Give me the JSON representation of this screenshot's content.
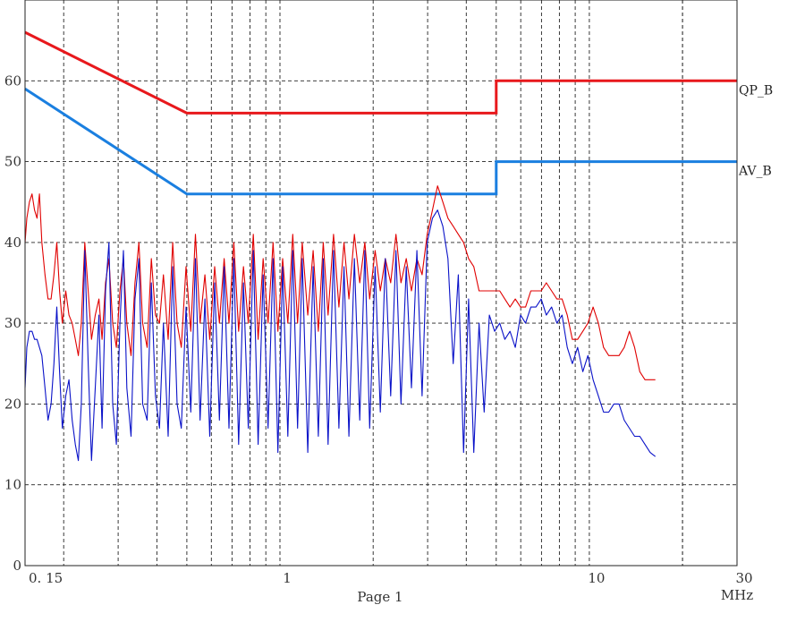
{
  "page_label": "Page 1",
  "chart_data": {
    "type": "line",
    "x_scale": "log",
    "xlim": [
      0.15,
      30
    ],
    "ylim": [
      0,
      70
    ],
    "grid": true,
    "x_ticks": [
      {
        "value": 0.15,
        "label": "0. 15"
      },
      {
        "value": 1,
        "label": "1"
      },
      {
        "value": 10,
        "label": "10"
      },
      {
        "value": 30,
        "label": "30"
      }
    ],
    "x_unit": "MHz",
    "y_ticks": [
      0,
      10,
      20,
      30,
      40,
      50,
      60
    ],
    "limit_lines": [
      {
        "name": "QP_B",
        "color": "#e8181c",
        "points": [
          [
            0.15,
            66
          ],
          [
            0.5,
            56
          ],
          [
            5,
            56
          ],
          [
            5,
            60
          ],
          [
            30,
            60
          ]
        ]
      },
      {
        "name": "AV_B",
        "color": "#1a7fe0",
        "points": [
          [
            0.15,
            59
          ],
          [
            0.5,
            46
          ],
          [
            5,
            46
          ],
          [
            5,
            50
          ],
          [
            30,
            50
          ]
        ]
      }
    ],
    "series": [
      {
        "color": "#e00000",
        "points": [
          [
            0.15,
            40
          ],
          [
            0.152,
            43
          ],
          [
            0.155,
            45
          ],
          [
            0.158,
            46
          ],
          [
            0.161,
            44
          ],
          [
            0.164,
            43
          ],
          [
            0.167,
            46
          ],
          [
            0.17,
            40
          ],
          [
            0.174,
            36
          ],
          [
            0.178,
            33
          ],
          [
            0.182,
            33
          ],
          [
            0.186,
            36
          ],
          [
            0.19,
            40
          ],
          [
            0.194,
            34
          ],
          [
            0.198,
            30
          ],
          [
            0.203,
            34
          ],
          [
            0.208,
            31
          ],
          [
            0.213,
            30
          ],
          [
            0.218,
            28
          ],
          [
            0.223,
            26
          ],
          [
            0.228,
            30
          ],
          [
            0.234,
            40
          ],
          [
            0.24,
            34
          ],
          [
            0.246,
            28
          ],
          [
            0.253,
            31
          ],
          [
            0.26,
            33
          ],
          [
            0.266,
            28
          ],
          [
            0.273,
            35
          ],
          [
            0.28,
            38
          ],
          [
            0.288,
            30
          ],
          [
            0.296,
            27
          ],
          [
            0.304,
            34
          ],
          [
            0.312,
            38
          ],
          [
            0.32,
            30
          ],
          [
            0.33,
            26
          ],
          [
            0.34,
            35
          ],
          [
            0.35,
            40
          ],
          [
            0.36,
            30
          ],
          [
            0.372,
            27
          ],
          [
            0.384,
            38
          ],
          [
            0.396,
            31
          ],
          [
            0.408,
            30
          ],
          [
            0.42,
            36
          ],
          [
            0.435,
            28
          ],
          [
            0.45,
            40
          ],
          [
            0.465,
            30
          ],
          [
            0.48,
            27
          ],
          [
            0.497,
            37
          ],
          [
            0.515,
            29
          ],
          [
            0.533,
            41
          ],
          [
            0.552,
            30
          ],
          [
            0.572,
            36
          ],
          [
            0.593,
            28
          ],
          [
            0.615,
            37
          ],
          [
            0.637,
            30
          ],
          [
            0.66,
            38
          ],
          [
            0.684,
            30
          ],
          [
            0.709,
            40
          ],
          [
            0.735,
            29
          ],
          [
            0.762,
            37
          ],
          [
            0.79,
            30
          ],
          [
            0.82,
            41
          ],
          [
            0.85,
            28
          ],
          [
            0.882,
            38
          ],
          [
            0.915,
            30
          ],
          [
            0.95,
            40
          ],
          [
            0.985,
            29
          ],
          [
            1.02,
            38
          ],
          [
            1.06,
            30
          ],
          [
            1.1,
            41
          ],
          [
            1.14,
            30
          ],
          [
            1.18,
            40
          ],
          [
            1.23,
            31
          ],
          [
            1.28,
            39
          ],
          [
            1.33,
            29
          ],
          [
            1.38,
            40
          ],
          [
            1.43,
            31
          ],
          [
            1.49,
            41
          ],
          [
            1.55,
            32
          ],
          [
            1.61,
            40
          ],
          [
            1.67,
            33
          ],
          [
            1.74,
            41
          ],
          [
            1.81,
            35
          ],
          [
            1.88,
            40
          ],
          [
            1.95,
            33
          ],
          [
            2.03,
            39
          ],
          [
            2.11,
            34
          ],
          [
            2.19,
            38
          ],
          [
            2.28,
            35
          ],
          [
            2.37,
            41
          ],
          [
            2.46,
            35
          ],
          [
            2.56,
            38
          ],
          [
            2.66,
            34
          ],
          [
            2.77,
            38
          ],
          [
            2.88,
            36
          ],
          [
            2.99,
            41
          ],
          [
            3.11,
            44
          ],
          [
            3.23,
            47
          ],
          [
            3.36,
            45
          ],
          [
            3.49,
            43
          ],
          [
            3.63,
            42
          ],
          [
            3.77,
            41
          ],
          [
            3.92,
            40
          ],
          [
            4.07,
            38
          ],
          [
            4.23,
            37
          ],
          [
            4.4,
            34
          ],
          [
            4.57,
            34
          ],
          [
            4.75,
            34
          ],
          [
            4.94,
            34
          ],
          [
            5.13,
            34
          ],
          [
            5.33,
            33
          ],
          [
            5.54,
            32
          ],
          [
            5.76,
            33
          ],
          [
            5.99,
            32
          ],
          [
            6.22,
            32
          ],
          [
            6.47,
            34
          ],
          [
            6.72,
            34
          ],
          [
            6.99,
            34
          ],
          [
            7.26,
            35
          ],
          [
            7.55,
            34
          ],
          [
            7.85,
            33
          ],
          [
            8.16,
            33
          ],
          [
            8.48,
            31
          ],
          [
            8.81,
            28
          ],
          [
            9.16,
            28
          ],
          [
            9.52,
            29
          ],
          [
            9.89,
            30
          ],
          [
            10.28,
            32
          ],
          [
            10.69,
            30
          ],
          [
            11.11,
            27
          ],
          [
            11.55,
            26
          ],
          [
            12,
            26
          ],
          [
            12.47,
            26
          ],
          [
            12.96,
            27
          ],
          [
            13.47,
            29
          ],
          [
            14,
            27
          ],
          [
            14.55,
            24
          ],
          [
            15.12,
            23
          ],
          [
            15.72,
            23
          ],
          [
            16.34,
            23
          ]
        ]
      },
      {
        "color": "#0a12c8",
        "points": [
          [
            0.15,
            22
          ],
          [
            0.152,
            27
          ],
          [
            0.155,
            29
          ],
          [
            0.158,
            29
          ],
          [
            0.161,
            28
          ],
          [
            0.164,
            28
          ],
          [
            0.167,
            27
          ],
          [
            0.17,
            26
          ],
          [
            0.174,
            22
          ],
          [
            0.178,
            18
          ],
          [
            0.182,
            20
          ],
          [
            0.186,
            25
          ],
          [
            0.19,
            32
          ],
          [
            0.194,
            24
          ],
          [
            0.198,
            17
          ],
          [
            0.203,
            21
          ],
          [
            0.208,
            23
          ],
          [
            0.213,
            18
          ],
          [
            0.218,
            15
          ],
          [
            0.223,
            13
          ],
          [
            0.228,
            20
          ],
          [
            0.234,
            39
          ],
          [
            0.24,
            25
          ],
          [
            0.246,
            13
          ],
          [
            0.253,
            22
          ],
          [
            0.26,
            31
          ],
          [
            0.266,
            17
          ],
          [
            0.273,
            34
          ],
          [
            0.28,
            40
          ],
          [
            0.288,
            20
          ],
          [
            0.296,
            15
          ],
          [
            0.304,
            30
          ],
          [
            0.312,
            39
          ],
          [
            0.32,
            22
          ],
          [
            0.33,
            16
          ],
          [
            0.34,
            33
          ],
          [
            0.35,
            38
          ],
          [
            0.36,
            20
          ],
          [
            0.372,
            18
          ],
          [
            0.384,
            35
          ],
          [
            0.396,
            21
          ],
          [
            0.408,
            17
          ],
          [
            0.42,
            30
          ],
          [
            0.435,
            16
          ],
          [
            0.45,
            37
          ],
          [
            0.465,
            20
          ],
          [
            0.48,
            17
          ],
          [
            0.497,
            32
          ],
          [
            0.515,
            19
          ],
          [
            0.533,
            38
          ],
          [
            0.552,
            18
          ],
          [
            0.572,
            33
          ],
          [
            0.593,
            16
          ],
          [
            0.615,
            35
          ],
          [
            0.637,
            18
          ],
          [
            0.66,
            37
          ],
          [
            0.684,
            17
          ],
          [
            0.709,
            38
          ],
          [
            0.735,
            15
          ],
          [
            0.762,
            35
          ],
          [
            0.79,
            17
          ],
          [
            0.82,
            39
          ],
          [
            0.85,
            15
          ],
          [
            0.882,
            36
          ],
          [
            0.915,
            17
          ],
          [
            0.95,
            38
          ],
          [
            0.985,
            14
          ],
          [
            1.02,
            37
          ],
          [
            1.06,
            16
          ],
          [
            1.1,
            39
          ],
          [
            1.14,
            17
          ],
          [
            1.18,
            38
          ],
          [
            1.23,
            14
          ],
          [
            1.28,
            37
          ],
          [
            1.33,
            16
          ],
          [
            1.38,
            38
          ],
          [
            1.43,
            15
          ],
          [
            1.49,
            39
          ],
          [
            1.55,
            17
          ],
          [
            1.61,
            37
          ],
          [
            1.67,
            16
          ],
          [
            1.74,
            38
          ],
          [
            1.81,
            18
          ],
          [
            1.88,
            39
          ],
          [
            1.95,
            17
          ],
          [
            2.03,
            37
          ],
          [
            2.11,
            19
          ],
          [
            2.19,
            38
          ],
          [
            2.28,
            21
          ],
          [
            2.37,
            39
          ],
          [
            2.46,
            20
          ],
          [
            2.56,
            37
          ],
          [
            2.66,
            22
          ],
          [
            2.77,
            39
          ],
          [
            2.88,
            21
          ],
          [
            2.99,
            40
          ],
          [
            3.11,
            43
          ],
          [
            3.23,
            44
          ],
          [
            3.36,
            42
          ],
          [
            3.49,
            38
          ],
          [
            3.63,
            25
          ],
          [
            3.77,
            36
          ],
          [
            3.92,
            14
          ],
          [
            4.07,
            33
          ],
          [
            4.23,
            14
          ],
          [
            4.4,
            30
          ],
          [
            4.57,
            19
          ],
          [
            4.75,
            31
          ],
          [
            4.94,
            29
          ],
          [
            5.13,
            30
          ],
          [
            5.33,
            28
          ],
          [
            5.54,
            29
          ],
          [
            5.76,
            27
          ],
          [
            5.99,
            31
          ],
          [
            6.22,
            30
          ],
          [
            6.47,
            32
          ],
          [
            6.72,
            32
          ],
          [
            6.99,
            33
          ],
          [
            7.26,
            31
          ],
          [
            7.55,
            32
          ],
          [
            7.85,
            30
          ],
          [
            8.16,
            31
          ],
          [
            8.48,
            27
          ],
          [
            8.81,
            25
          ],
          [
            9.16,
            27
          ],
          [
            9.52,
            24
          ],
          [
            9.89,
            26
          ],
          [
            10.28,
            23
          ],
          [
            10.69,
            21
          ],
          [
            11.11,
            19
          ],
          [
            11.55,
            19
          ],
          [
            12,
            20
          ],
          [
            12.47,
            20
          ],
          [
            12.96,
            18
          ],
          [
            13.47,
            17
          ],
          [
            14,
            16
          ],
          [
            14.55,
            16
          ],
          [
            15.12,
            15
          ],
          [
            15.72,
            14
          ],
          [
            16.34,
            13.5
          ]
        ]
      }
    ]
  }
}
